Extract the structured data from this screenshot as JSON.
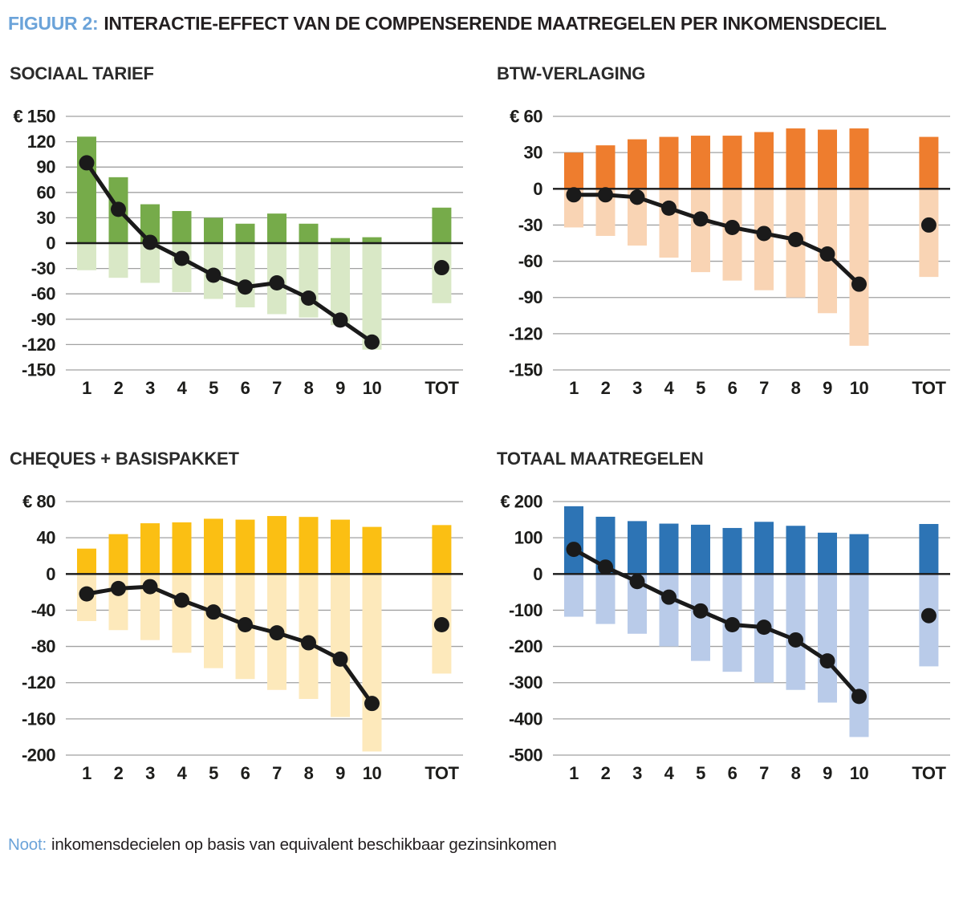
{
  "figure": {
    "label": "FIGUUR 2:",
    "title": "INTERACTIE-EFFECT VAN DE COMPENSERENDE MAATREGELEN PER INKOMENSDECIEL"
  },
  "note": {
    "label": "Noot:",
    "text": "inkomensdecielen op basis van equivalent beschikbaar gezinsinkomen"
  },
  "colors": {
    "accent_blue_text": "#6ba3d9",
    "grid_line": "#a1a1a1",
    "zero_axis": "#1a1a1a",
    "dot_line": "#1a1a1a",
    "axis_text": "#1d1d1b"
  },
  "chart_data": [
    {
      "type": "bar+line",
      "title": "SOCIAAL TARIEF",
      "currency_prefix": "€",
      "categories": [
        "1",
        "2",
        "3",
        "4",
        "5",
        "6",
        "7",
        "8",
        "9",
        "10",
        "TOT"
      ],
      "ylim": [
        -150,
        150
      ],
      "ytick_step": 30,
      "grid": true,
      "bar_positive_color": "#76ab4a",
      "bar_negative_color": "#d9e8c6",
      "series": [
        {
          "name": "positive-effect-bars",
          "values": [
            126,
            78,
            46,
            38,
            30,
            23,
            35,
            23,
            6,
            7,
            42
          ]
        },
        {
          "name": "negative-effect-bars",
          "values": [
            -32,
            -41,
            -47,
            -58,
            -66,
            -76,
            -84,
            -88,
            -97,
            -126,
            -71
          ]
        },
        {
          "name": "interaction-dots",
          "values": [
            95,
            40,
            1,
            -18,
            -38,
            -52,
            -47,
            -65,
            -91,
            -117,
            -29
          ]
        }
      ]
    },
    {
      "type": "bar+line",
      "title": "BTW-VERLAGING",
      "currency_prefix": "€",
      "categories": [
        "1",
        "2",
        "3",
        "4",
        "5",
        "6",
        "7",
        "8",
        "9",
        "10",
        "TOT"
      ],
      "ylim": [
        -150,
        60
      ],
      "ytick_step": 30,
      "grid": true,
      "bar_positive_color": "#ee7d2e",
      "bar_negative_color": "#f9d4b4",
      "series": [
        {
          "name": "positive-effect-bars",
          "values": [
            30,
            36,
            41,
            43,
            44,
            44,
            47,
            50,
            49,
            50,
            43
          ]
        },
        {
          "name": "negative-effect-bars",
          "values": [
            -32,
            -39,
            -47,
            -57,
            -69,
            -76,
            -84,
            -90,
            -103,
            -130,
            -73
          ]
        },
        {
          "name": "interaction-dots",
          "values": [
            -5,
            -5,
            -7,
            -16,
            -25,
            -32,
            -37,
            -42,
            -54,
            -79,
            -30
          ]
        }
      ]
    },
    {
      "type": "bar+line",
      "title": "CHEQUES + BASISPAKKET",
      "currency_prefix": "€",
      "categories": [
        "1",
        "2",
        "3",
        "4",
        "5",
        "6",
        "7",
        "8",
        "9",
        "10",
        "TOT"
      ],
      "ylim": [
        -200,
        80
      ],
      "ytick_step": 40,
      "grid": true,
      "bar_positive_color": "#fbbf13",
      "bar_negative_color": "#fde9bb",
      "series": [
        {
          "name": "positive-effect-bars",
          "values": [
            28,
            44,
            56,
            57,
            61,
            60,
            64,
            63,
            60,
            52,
            54
          ]
        },
        {
          "name": "negative-effect-bars",
          "values": [
            -52,
            -62,
            -73,
            -87,
            -104,
            -116,
            -128,
            -138,
            -158,
            -196,
            -110
          ]
        },
        {
          "name": "interaction-dots",
          "values": [
            -22,
            -16,
            -14,
            -29,
            -42,
            -56,
            -65,
            -76,
            -94,
            -143,
            -56
          ]
        }
      ]
    },
    {
      "type": "bar+line",
      "title": "TOTAAL MAATREGELEN",
      "currency_prefix": "€",
      "categories": [
        "1",
        "2",
        "3",
        "4",
        "5",
        "6",
        "7",
        "8",
        "9",
        "10",
        "TOT"
      ],
      "ylim": [
        -500,
        200
      ],
      "ytick_step": 100,
      "grid": true,
      "bar_positive_color": "#2d74b5",
      "bar_negative_color": "#b9cbe9",
      "series": [
        {
          "name": "positive-effect-bars",
          "values": [
            187,
            158,
            146,
            139,
            136,
            127,
            144,
            133,
            114,
            110,
            138
          ]
        },
        {
          "name": "negative-effect-bars",
          "values": [
            -118,
            -138,
            -165,
            -200,
            -240,
            -270,
            -300,
            -320,
            -355,
            -450,
            -255
          ]
        },
        {
          "name": "interaction-dots",
          "values": [
            68,
            19,
            -21,
            -64,
            -102,
            -140,
            -147,
            -182,
            -240,
            -338,
            -115
          ]
        }
      ]
    }
  ]
}
